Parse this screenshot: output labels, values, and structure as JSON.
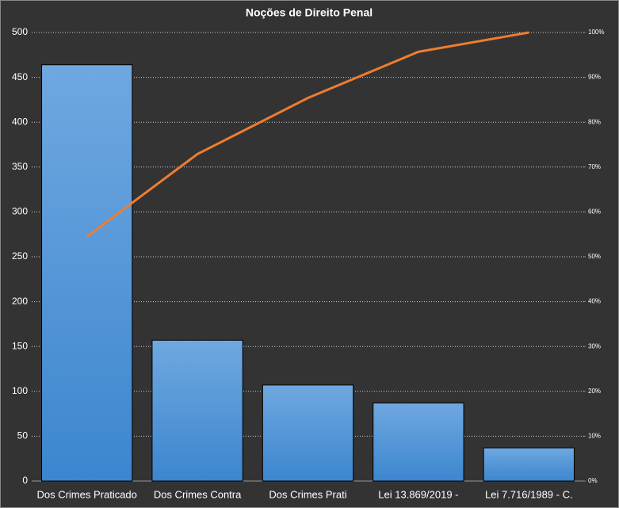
{
  "chart_data": {
    "type": "pareto",
    "title": "Noções de Direito  Penal",
    "categories": [
      "Dos Crimes Praticado",
      "Dos Crimes Contra",
      "Dos Crimes Prati",
      "Lei 13.869/2019 -",
      "Lei 7.716/1989 - C."
    ],
    "series": [
      {
        "type": "bar",
        "color": "#4a90d9",
        "values": [
          464,
          157,
          107,
          87,
          37
        ]
      },
      {
        "type": "line",
        "color": "#ed7d31",
        "axis": "y2",
        "values": [
          54.5,
          72.9,
          85.4,
          95.7,
          100
        ]
      }
    ],
    "ylim": [
      0,
      500
    ],
    "yticks": [
      0,
      50,
      100,
      150,
      200,
      250,
      300,
      350,
      400,
      450,
      500
    ],
    "y2lim": [
      0,
      100
    ],
    "y2ticks": [
      {
        "value": 0,
        "label": "0%"
      },
      {
        "value": 10,
        "label": "10%"
      },
      {
        "value": 20,
        "label": "20%"
      },
      {
        "value": 30,
        "label": "30%"
      },
      {
        "value": 40,
        "label": "40%"
      },
      {
        "value": 50,
        "label": "50%"
      },
      {
        "value": 60,
        "label": "60%"
      },
      {
        "value": 70,
        "label": "70%"
      },
      {
        "value": 80,
        "label": "80%"
      },
      {
        "value": 90,
        "label": "90%"
      },
      {
        "value": 100,
        "label": "100%"
      }
    ],
    "grid": true
  }
}
